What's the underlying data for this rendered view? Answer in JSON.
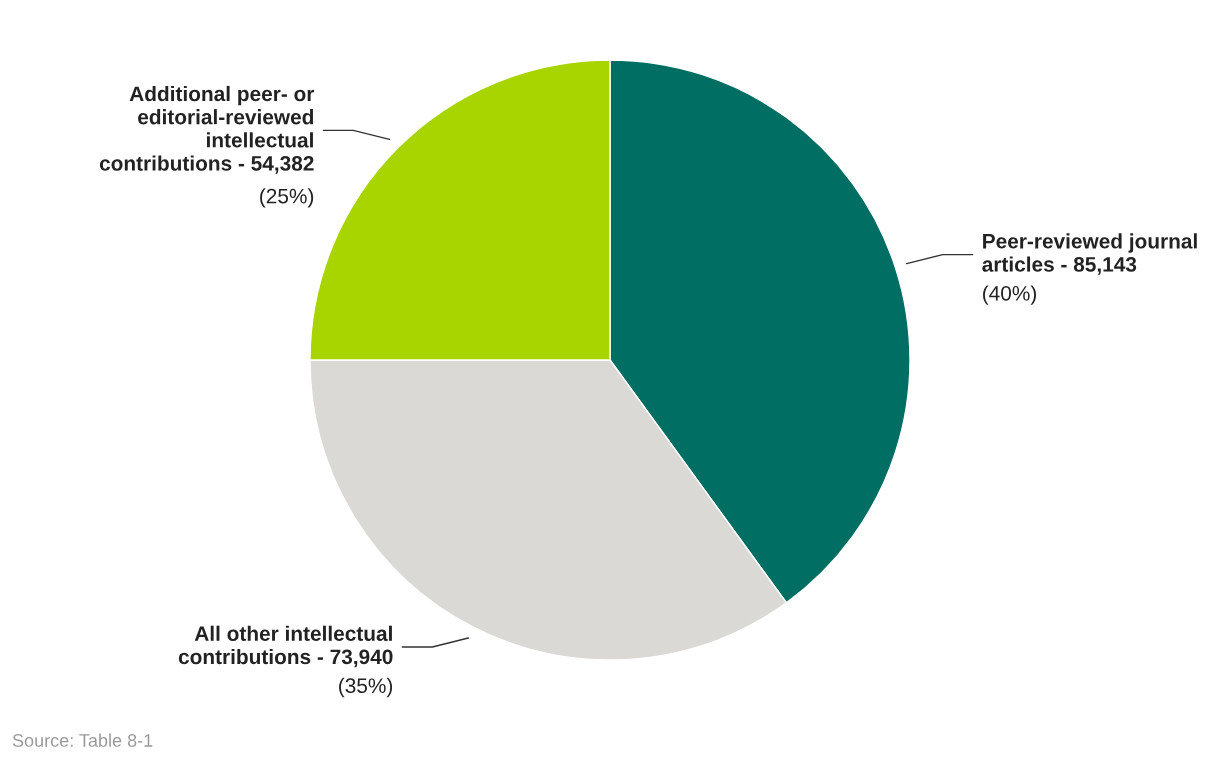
{
  "chart_data": {
    "type": "pie",
    "categories": [
      "Peer-reviewed journal articles - 85,143",
      "All other intellectual contributions - 73,940",
      "Additional peer- or editorial-reviewed intellectual contributions - 54,382"
    ],
    "values": [
      40,
      35,
      25
    ],
    "value_labels": [
      "(40%)",
      "(35%)",
      "(25%)"
    ],
    "colors": [
      "#006e63",
      "#dad9d6",
      "#a8d400"
    ],
    "annotations": [
      "Source: Table 8-1"
    ]
  }
}
